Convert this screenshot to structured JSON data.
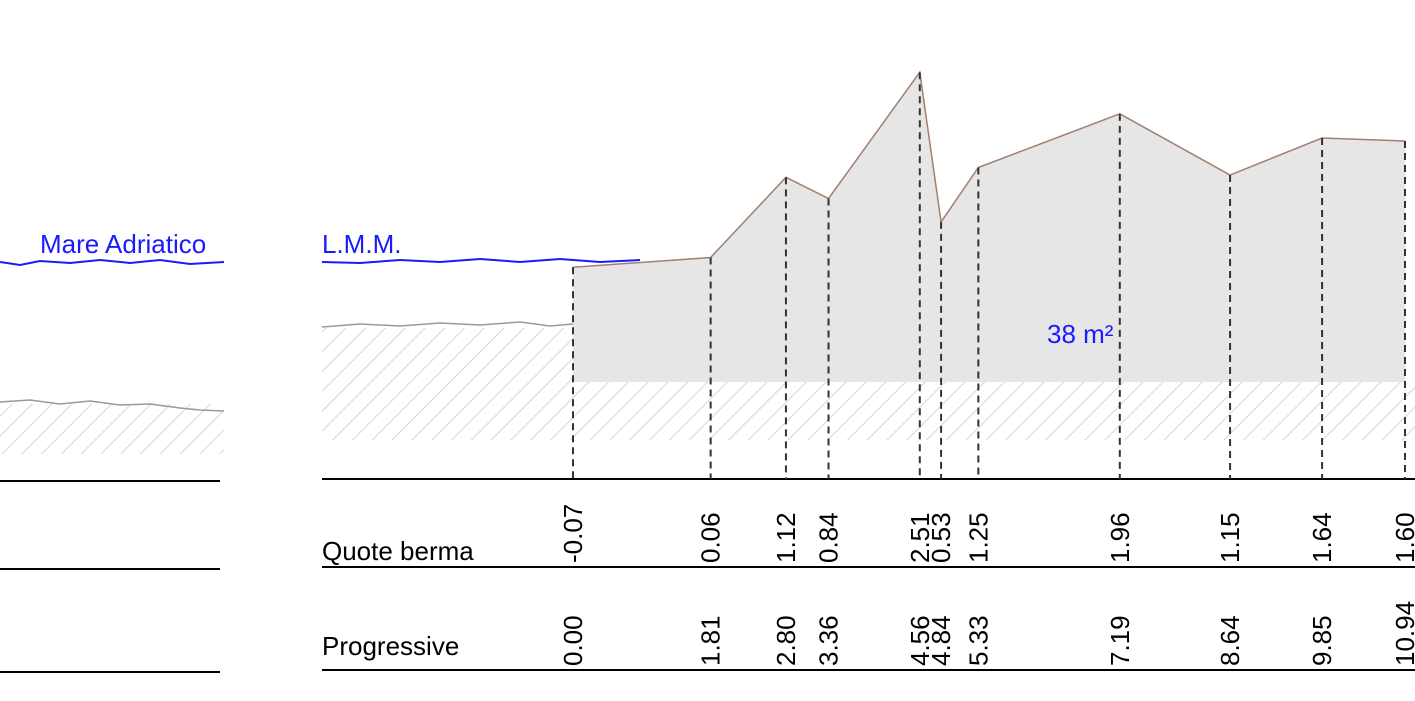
{
  "sea_label": "Mare Adriatico",
  "datum_label": "L.M.M.",
  "area_label": "38 m²",
  "rows": {
    "quota": "Quote berma",
    "progressive": "Progressive"
  },
  "stations": [
    {
      "quota": {
        "value": -0.07,
        "label": "-0.07"
      },
      "progressive": {
        "value": 0,
        "label": "0.00"
      }
    },
    {
      "quota": {
        "value": 0.06,
        "label": "0.06"
      },
      "progressive": {
        "value": 1.81,
        "label": "1.81"
      }
    },
    {
      "quota": {
        "value": 1.12,
        "label": "1.12"
      },
      "progressive": {
        "value": 2.8,
        "label": "2.80"
      }
    },
    {
      "quota": {
        "value": 0.84,
        "label": "0.84"
      },
      "progressive": {
        "value": 3.36,
        "label": "3.36"
      }
    },
    {
      "quota": {
        "value": 2.51,
        "label": "2.51"
      },
      "progressive": {
        "value": 4.56,
        "label": "4.56"
      }
    },
    {
      "quota": {
        "value": 0.53,
        "label": "0.53"
      },
      "progressive": {
        "value": 4.84,
        "label": "4.84"
      }
    },
    {
      "quota": {
        "value": 1.25,
        "label": "1.25"
      },
      "progressive": {
        "value": 5.33,
        "label": "5.33"
      }
    },
    {
      "quota": {
        "value": 1.96,
        "label": "1.96"
      },
      "progressive": {
        "value": 7.19,
        "label": "7.19"
      }
    },
    {
      "quota": {
        "value": 1.15,
        "label": "1.15"
      },
      "progressive": {
        "value": 8.64,
        "label": "8.64"
      }
    },
    {
      "quota": {
        "value": 1.64,
        "label": "1.64"
      },
      "progressive": {
        "value": 9.85,
        "label": "9.85"
      }
    },
    {
      "quota": {
        "value": 1.6,
        "label": "1.60"
      },
      "progressive": {
        "value": 10.94,
        "label": "10.94"
      }
    }
  ]
}
